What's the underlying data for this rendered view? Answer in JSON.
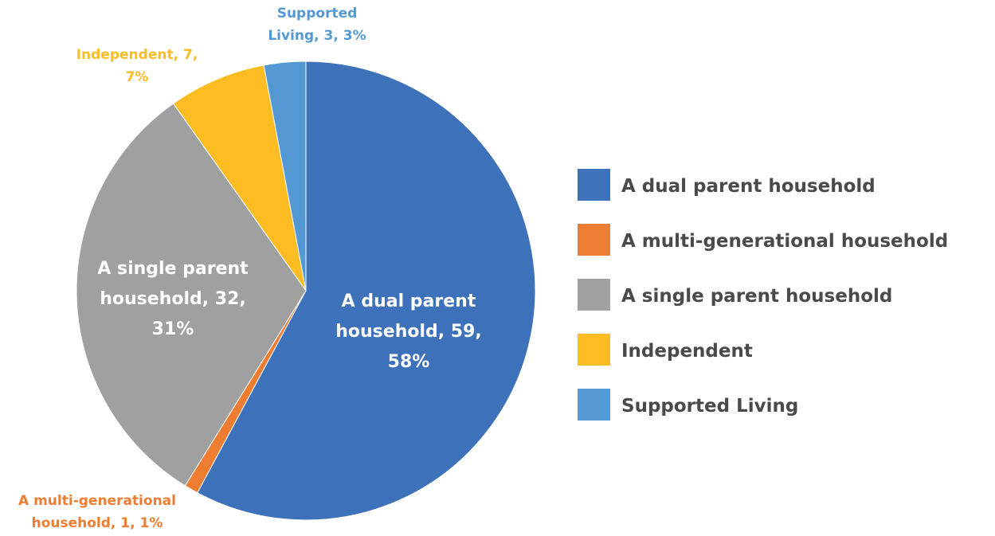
{
  "chart_data": {
    "type": "pie",
    "title": "",
    "series": [
      {
        "values": [
          59,
          1,
          32,
          7,
          3
        ]
      }
    ],
    "categories": [
      "A dual parent household",
      "A multi-generational household",
      "A single parent household",
      "Independent",
      "Supported Living"
    ],
    "colors": [
      "#3d72bb",
      "#ee7d31",
      "#a0a0a0",
      "#fdbc22",
      "#5499d4"
    ],
    "data_labels": [
      [
        "A dual parent",
        "household, 59,",
        "58%"
      ],
      [
        "A multi-generational",
        "household, 1, 1%"
      ],
      [
        "A single parent",
        "household, 32,",
        "31%"
      ],
      [
        "Independent, 7,",
        "7%"
      ],
      [
        "Supported",
        "Living, 3, 3%"
      ]
    ],
    "legend": {
      "position": "right",
      "entries": [
        "A dual parent household",
        "A multi-generational household",
        "A single parent household",
        "Independent",
        "Supported Living"
      ]
    }
  }
}
